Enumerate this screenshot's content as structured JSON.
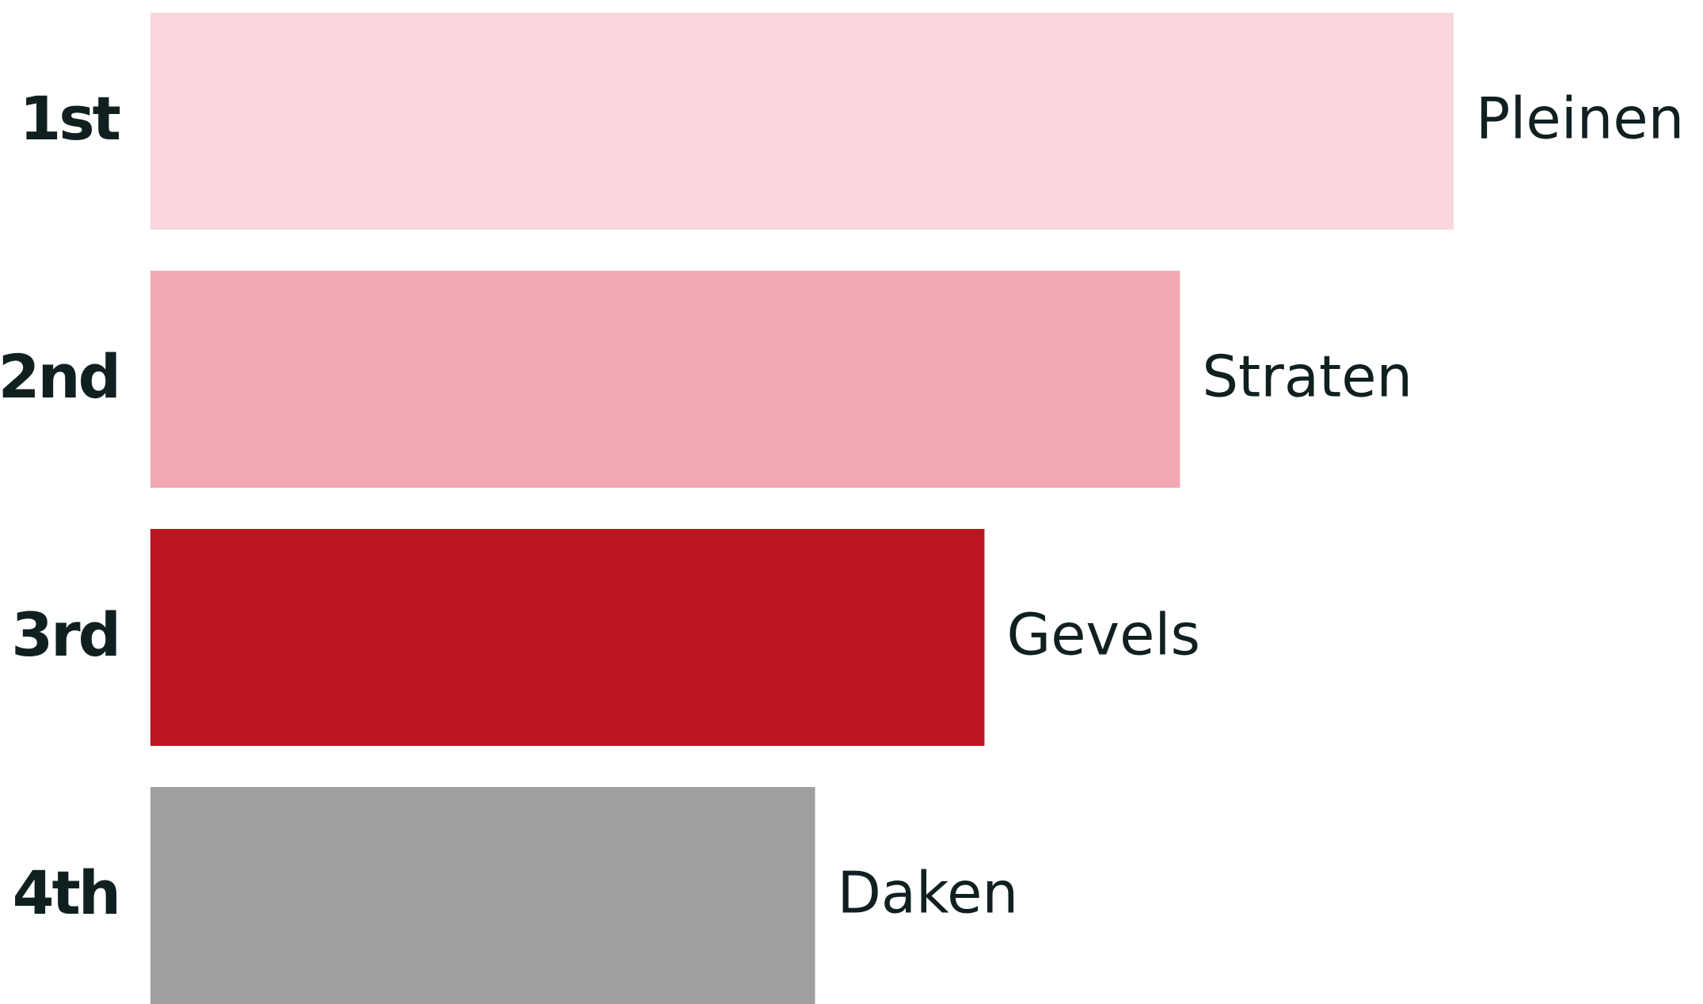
{
  "chart_data": {
    "type": "bar",
    "orientation": "horizontal",
    "ranks": [
      "1st",
      "2nd",
      "3rd",
      "4th"
    ],
    "categories": [
      "Pleinen",
      "Straten",
      "Gevels",
      "Daken"
    ],
    "values": [
      100,
      79,
      64,
      51
    ],
    "colors": [
      "#f9d5dc",
      "#f3a7b3",
      "#bc1522",
      "#a0a19f"
    ],
    "xlim": [
      0,
      100
    ]
  }
}
